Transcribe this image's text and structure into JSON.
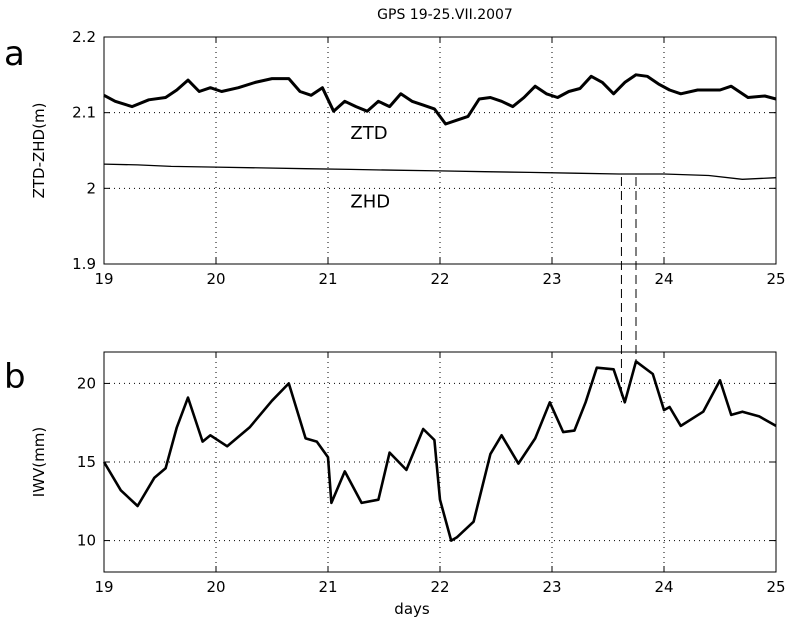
{
  "figure": {
    "title": "GPS 19-25.VII.2007",
    "panels": [
      "a",
      "b"
    ],
    "xlabel": "days"
  },
  "chart_data": [
    {
      "type": "line",
      "panel": "a",
      "title": "GPS 19-25.VII.2007",
      "xlabel": "",
      "ylabel": "ZTD-ZHD(m)",
      "xlim": [
        19,
        25
      ],
      "ylim": [
        1.9,
        2.2
      ],
      "xticks": [
        19,
        20,
        21,
        22,
        23,
        24,
        25
      ],
      "yticks": [
        1.9,
        2.0,
        2.1,
        2.2
      ],
      "ytick_labels": [
        "1.9",
        "2",
        "2.1",
        "2.2"
      ],
      "grid": true,
      "annotations": [
        {
          "text": "ZTD",
          "x": 21.2,
          "y": 2.065
        },
        {
          "text": "ZHD",
          "x": 21.2,
          "y": 1.975
        }
      ],
      "series": [
        {
          "label": "ZTD",
          "stroke_width": 3,
          "x": [
            19.0,
            19.1,
            19.25,
            19.4,
            19.55,
            19.65,
            19.75,
            19.85,
            19.95,
            20.05,
            20.2,
            20.35,
            20.5,
            20.65,
            20.75,
            20.85,
            20.95,
            21.05,
            21.15,
            21.25,
            21.35,
            21.45,
            21.55,
            21.65,
            21.75,
            21.85,
            21.95,
            22.05,
            22.15,
            22.25,
            22.35,
            22.45,
            22.55,
            22.65,
            22.75,
            22.85,
            22.95,
            23.05,
            23.15,
            23.25,
            23.35,
            23.45,
            23.55,
            23.65,
            23.75,
            23.85,
            23.95,
            24.05,
            24.15,
            24.3,
            24.5,
            24.6,
            24.75,
            24.9,
            25.0
          ],
          "y": [
            2.123,
            2.115,
            2.108,
            2.117,
            2.12,
            2.13,
            2.143,
            2.128,
            2.133,
            2.128,
            2.133,
            2.14,
            2.145,
            2.145,
            2.128,
            2.123,
            2.133,
            2.102,
            2.115,
            2.108,
            2.102,
            2.115,
            2.108,
            2.125,
            2.115,
            2.11,
            2.105,
            2.085,
            2.09,
            2.095,
            2.118,
            2.12,
            2.115,
            2.108,
            2.12,
            2.135,
            2.125,
            2.12,
            2.128,
            2.132,
            2.148,
            2.14,
            2.125,
            2.14,
            2.15,
            2.148,
            2.138,
            2.13,
            2.125,
            2.13,
            2.13,
            2.135,
            2.12,
            2.122,
            2.118
          ]
        },
        {
          "label": "ZHD",
          "stroke_width": 1.3,
          "x": [
            19.0,
            19.3,
            19.6,
            20.0,
            20.4,
            20.8,
            21.2,
            21.6,
            22.0,
            22.4,
            22.8,
            23.2,
            23.6,
            24.0,
            24.4,
            24.7,
            25.0
          ],
          "y": [
            2.032,
            2.031,
            2.029,
            2.028,
            2.027,
            2.026,
            2.025,
            2.024,
            2.023,
            2.022,
            2.021,
            2.02,
            2.019,
            2.019,
            2.017,
            2.012,
            2.014
          ]
        }
      ]
    },
    {
      "type": "line",
      "panel": "b",
      "xlabel": "days",
      "ylabel": "IWV(mm)",
      "xlim": [
        19,
        25
      ],
      "ylim": [
        8,
        22
      ],
      "xticks": [
        19,
        20,
        21,
        22,
        23,
        24,
        25
      ],
      "yticks": [
        10,
        15,
        20
      ],
      "ytick_labels": [
        "10",
        "15",
        "20"
      ],
      "grid": true,
      "series": [
        {
          "label": "IWV",
          "stroke_width": 2.6,
          "x": [
            19.0,
            19.15,
            19.3,
            19.45,
            19.55,
            19.65,
            19.75,
            19.88,
            19.95,
            20.1,
            20.3,
            20.5,
            20.65,
            20.8,
            20.9,
            21.0,
            21.03,
            21.15,
            21.3,
            21.45,
            21.55,
            21.7,
            21.85,
            21.95,
            22.0,
            22.1,
            22.15,
            22.3,
            22.45,
            22.55,
            22.7,
            22.85,
            22.98,
            23.1,
            23.2,
            23.3,
            23.4,
            23.55,
            23.65,
            23.75,
            23.9,
            24.0,
            24.05,
            24.15,
            24.35,
            24.5,
            24.6,
            24.7,
            24.85,
            25.0
          ],
          "y": [
            15.0,
            13.2,
            12.2,
            14.0,
            14.6,
            17.2,
            19.1,
            16.3,
            16.7,
            16.0,
            17.2,
            18.9,
            20.0,
            16.5,
            16.3,
            15.3,
            12.4,
            14.4,
            12.4,
            12.6,
            15.6,
            14.5,
            17.1,
            16.4,
            12.6,
            10.0,
            10.2,
            11.2,
            15.5,
            16.7,
            14.9,
            16.5,
            18.8,
            16.9,
            17.0,
            18.8,
            21.0,
            20.9,
            18.8,
            21.4,
            20.6,
            18.3,
            18.5,
            17.3,
            18.2,
            20.2,
            18.0,
            18.2,
            17.9,
            17.3
          ]
        }
      ]
    }
  ],
  "guides": {
    "x": [
      23.62,
      23.75
    ],
    "from_panel": "a",
    "from_y": 2.015,
    "to_panel": "b",
    "to_y": [
      18.8,
      21.4
    ]
  }
}
